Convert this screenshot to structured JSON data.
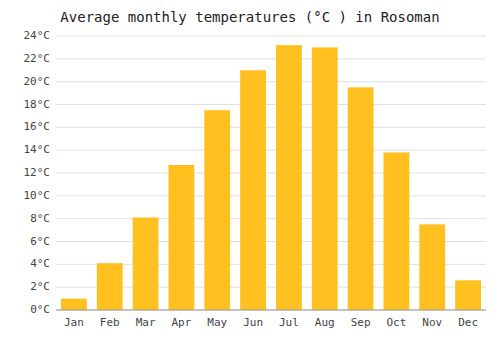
{
  "chart_data": {
    "type": "bar",
    "title": "Average monthly temperatures (°C ) in Rosoman",
    "categories": [
      "Jan",
      "Feb",
      "Mar",
      "Apr",
      "May",
      "Jun",
      "Jul",
      "Aug",
      "Sep",
      "Oct",
      "Nov",
      "Dec"
    ],
    "values": [
      1.0,
      4.1,
      8.1,
      12.7,
      17.5,
      21.0,
      23.2,
      23.0,
      19.5,
      13.8,
      7.5,
      2.6
    ],
    "color": "#FFC020",
    "ylim": [
      0,
      24
    ],
    "yticks": [
      {
        "value": 0,
        "label": "0°C"
      },
      {
        "value": 2,
        "label": "2°C"
      },
      {
        "value": 4,
        "label": "4°C"
      },
      {
        "value": 6,
        "label": "6°C"
      },
      {
        "value": 8,
        "label": "8°C"
      },
      {
        "value": 10,
        "label": "10°C"
      },
      {
        "value": 12,
        "label": "12°C"
      },
      {
        "value": 14,
        "label": "14°C"
      },
      {
        "value": 16,
        "label": "16°C"
      },
      {
        "value": 18,
        "label": "18°C"
      },
      {
        "value": 20,
        "label": "20°C"
      },
      {
        "value": 22,
        "label": "22°C"
      },
      {
        "value": 24,
        "label": "24°C"
      }
    ],
    "grid": true
  }
}
